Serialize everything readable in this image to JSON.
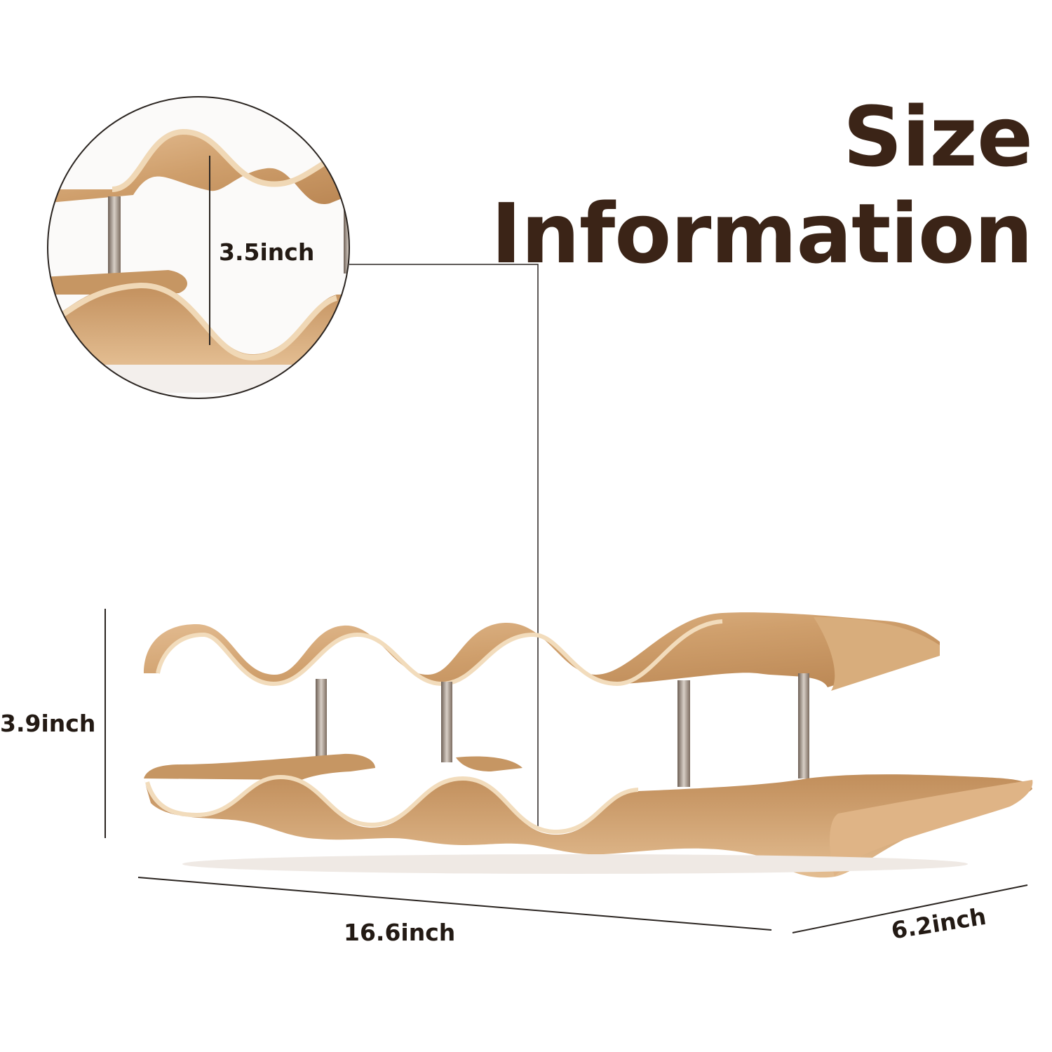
{
  "title": {
    "line1": "Size",
    "line2": "Information"
  },
  "dimensions": {
    "slot_height": "3.5inch",
    "height": "3.9inch",
    "length": "16.6inch",
    "depth": "6.2inch"
  },
  "colors": {
    "title": "#3b2417",
    "wood_light": "#e2b98a",
    "wood_dark": "#b78453",
    "metal": "#8c7a6a"
  }
}
